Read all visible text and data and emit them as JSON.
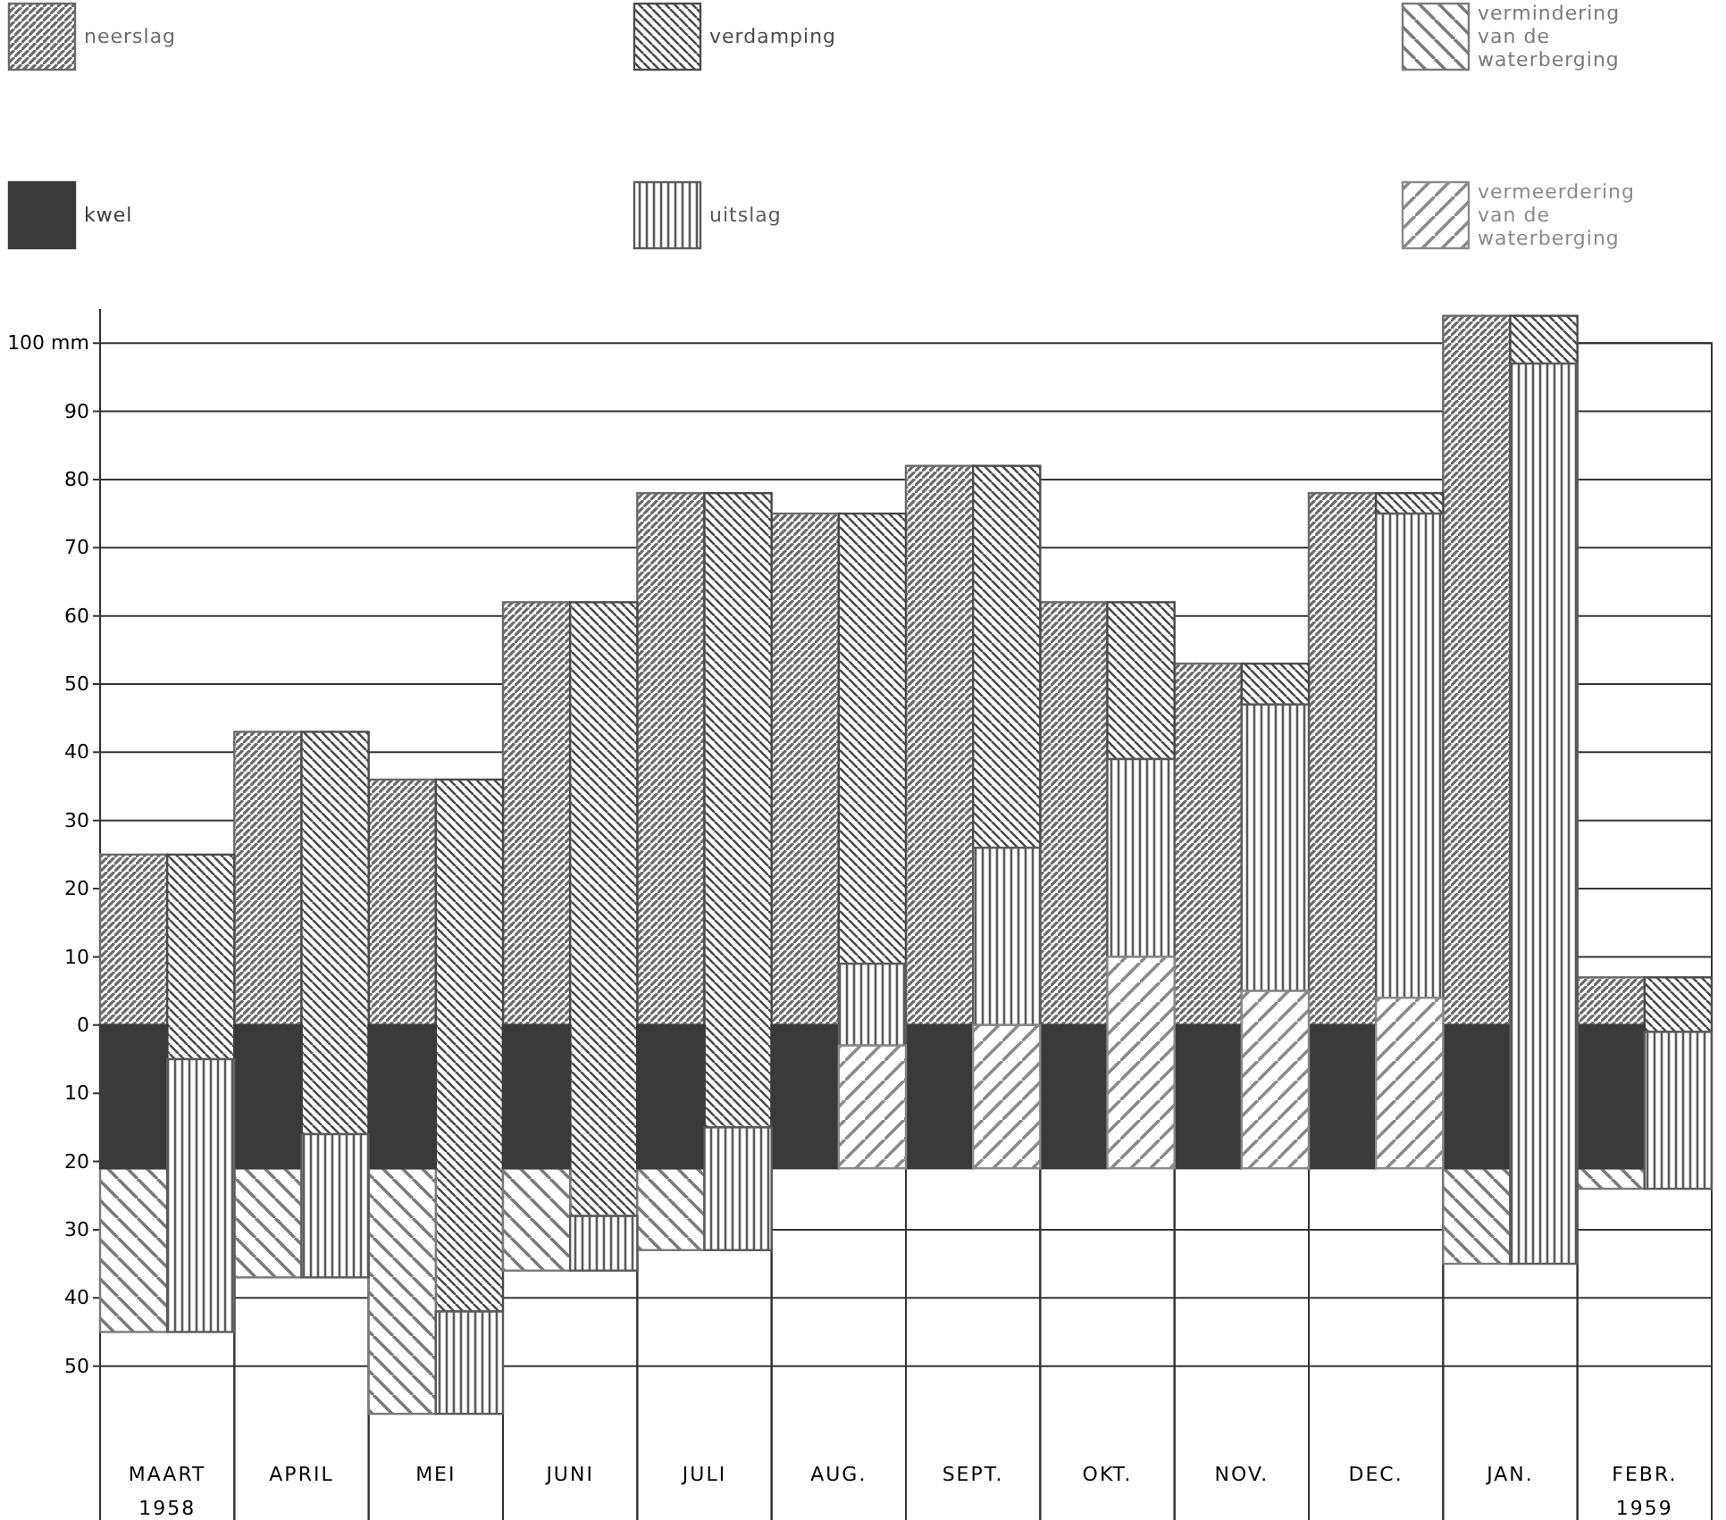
{
  "chart_data": {
    "type": "bar",
    "categories": [
      "MAART 1958",
      null,
      "APRIL",
      null,
      "MEI",
      null,
      "JUNI",
      null,
      "JULI",
      null,
      "AUG.",
      null,
      "SEPT.",
      null,
      "OKT.",
      null,
      "NOV.",
      null,
      "DEC.",
      null,
      "JAN.",
      null,
      "FEBR. 1959",
      null
    ],
    "series": [
      {
        "name": "neerslag",
        "color": "#6a6a6a",
        "base": [
          0,
          null,
          0,
          null,
          0,
          null,
          0,
          null,
          0,
          null,
          0,
          null,
          0,
          null,
          0,
          null,
          0,
          null,
          0,
          null,
          0,
          null,
          0,
          null
        ],
        "values": [
          25,
          null,
          43,
          null,
          36,
          null,
          62,
          null,
          78,
          null,
          75,
          null,
          82,
          null,
          62,
          null,
          53,
          null,
          78,
          null,
          104,
          null,
          7,
          null
        ]
      },
      {
        "name": "verdamping",
        "color": "#4a4a4a",
        "base": [
          null,
          25,
          null,
          43,
          null,
          36,
          null,
          62,
          null,
          78,
          null,
          75,
          null,
          82,
          null,
          62,
          null,
          53,
          null,
          78,
          null,
          104,
          null,
          7
        ],
        "values": [
          null,
          -30,
          null,
          -59,
          null,
          -78,
          null,
          -90,
          null,
          -93,
          null,
          -66,
          null,
          -56,
          null,
          -23,
          null,
          -6,
          null,
          -3,
          null,
          -7,
          null,
          -8
        ]
      },
      {
        "name": "vermindering van de waterberging",
        "color": "#7a7a7a",
        "base": [
          -21,
          null,
          -21,
          null,
          -21,
          null,
          -21,
          null,
          -21,
          null,
          null,
          null,
          null,
          null,
          null,
          null,
          null,
          null,
          null,
          null,
          -21,
          null,
          -21,
          null
        ],
        "values": [
          -24,
          null,
          -16,
          null,
          -36,
          null,
          -15,
          null,
          -12,
          null,
          null,
          null,
          null,
          null,
          null,
          null,
          null,
          null,
          null,
          null,
          -14,
          null,
          -3,
          null
        ]
      },
      {
        "name": "kwel",
        "color": "#3a3a3a",
        "base": [
          0,
          null,
          0,
          null,
          0,
          null,
          0,
          null,
          0,
          null,
          0,
          null,
          0,
          null,
          0,
          null,
          0,
          null,
          0,
          null,
          0,
          null,
          0,
          null
        ],
        "values": [
          -21,
          null,
          -21,
          null,
          -21,
          null,
          -21,
          null,
          -21,
          null,
          -21,
          null,
          -21,
          null,
          -21,
          null,
          -21,
          null,
          -21,
          null,
          -21,
          null,
          -21,
          null
        ]
      },
      {
        "name": "uitslag",
        "color": "#5a5a5a",
        "base": [
          null,
          -5,
          null,
          -16,
          null,
          -42,
          null,
          -28,
          null,
          -15,
          null,
          9,
          null,
          26,
          null,
          39,
          null,
          47,
          null,
          75,
          null,
          97,
          null,
          -1
        ],
        "values": [
          null,
          -40,
          null,
          -21,
          null,
          -15,
          null,
          -8,
          null,
          -18,
          null,
          -12,
          null,
          -26,
          null,
          -29,
          null,
          -42,
          null,
          -71,
          null,
          -132,
          null,
          -23
        ]
      },
      {
        "name": "vermeerdering van de waterberging",
        "color": "#8a8a8a",
        "base": [
          null,
          null,
          null,
          null,
          null,
          null,
          null,
          null,
          null,
          null,
          null,
          -3,
          null,
          0,
          null,
          10,
          null,
          5,
          null,
          4,
          null,
          null,
          null,
          null
        ],
        "values": [
          null,
          null,
          null,
          null,
          null,
          null,
          null,
          null,
          null,
          null,
          null,
          -18,
          null,
          -21,
          null,
          -31,
          null,
          -26,
          null,
          -25,
          null,
          null,
          null,
          null
        ]
      }
    ],
    "ylim": [
      -60,
      105
    ],
    "yticks": [
      {
        "value": -50,
        "label": "50"
      },
      {
        "value": -40,
        "label": "40"
      },
      {
        "value": -30,
        "label": "30"
      },
      {
        "value": -20,
        "label": "20"
      },
      {
        "value": -10,
        "label": "10"
      },
      0,
      10,
      20,
      30,
      40,
      50,
      60,
      70,
      80,
      90,
      {
        "value": 100,
        "label": "100 mm"
      }
    ],
    "grid": true,
    "legend": "top"
  }
}
